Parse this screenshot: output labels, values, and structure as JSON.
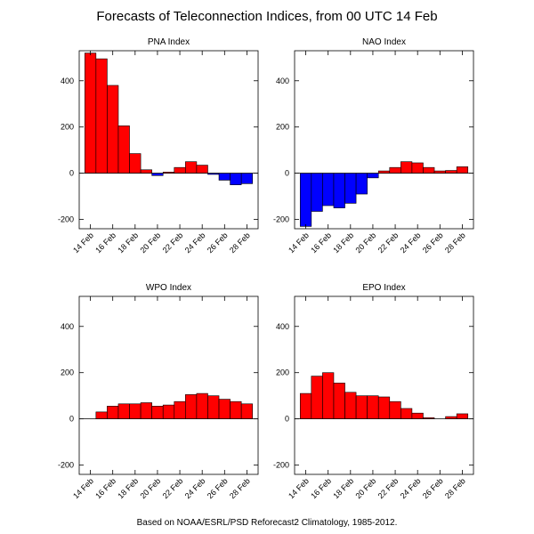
{
  "title": "Forecasts of Teleconnection Indices, from 00 UTC 14 Feb",
  "footer": "Based on NOAA/ESRL/PSD Reforecast2 Climatology, 1985-2012.",
  "colors": {
    "positive": "#ff0000",
    "negative": "#0000ff",
    "axis": "#000000"
  },
  "chart_data": [
    {
      "type": "bar",
      "title": "PNA Index",
      "ylim": [
        -240,
        530
      ],
      "yticks": [
        -200,
        0,
        200,
        400
      ],
      "xticks": [
        "14 Feb",
        "16 Feb",
        "18 Feb",
        "20 Feb",
        "22 Feb",
        "24 Feb",
        "26 Feb",
        "28 Feb"
      ],
      "values": [
        520,
        495,
        380,
        205,
        85,
        15,
        -10,
        5,
        25,
        50,
        35,
        -5,
        -30,
        -50,
        -45
      ]
    },
    {
      "type": "bar",
      "title": "NAO Index",
      "ylim": [
        -240,
        530
      ],
      "yticks": [
        -200,
        0,
        200,
        400
      ],
      "xticks": [
        "14 Feb",
        "16 Feb",
        "18 Feb",
        "20 Feb",
        "22 Feb",
        "24 Feb",
        "26 Feb",
        "28 Feb"
      ],
      "values": [
        -230,
        -165,
        -140,
        -150,
        -130,
        -90,
        -20,
        10,
        25,
        50,
        45,
        25,
        10,
        12,
        28
      ]
    },
    {
      "type": "bar",
      "title": "WPO Index",
      "ylim": [
        -240,
        530
      ],
      "yticks": [
        -200,
        0,
        200,
        400
      ],
      "xticks": [
        "14 Feb",
        "16 Feb",
        "18 Feb",
        "20 Feb",
        "22 Feb",
        "24 Feb",
        "26 Feb",
        "28 Feb"
      ],
      "values": [
        0,
        30,
        55,
        65,
        65,
        70,
        55,
        60,
        75,
        105,
        110,
        100,
        85,
        75,
        65
      ]
    },
    {
      "type": "bar",
      "title": "EPO Index",
      "ylim": [
        -240,
        530
      ],
      "yticks": [
        -200,
        0,
        200,
        400
      ],
      "xticks": [
        "14 Feb",
        "16 Feb",
        "18 Feb",
        "20 Feb",
        "22 Feb",
        "24 Feb",
        "26 Feb",
        "28 Feb"
      ],
      "values": [
        110,
        185,
        200,
        155,
        115,
        100,
        100,
        95,
        75,
        45,
        25,
        5,
        0,
        10,
        22
      ]
    }
  ]
}
